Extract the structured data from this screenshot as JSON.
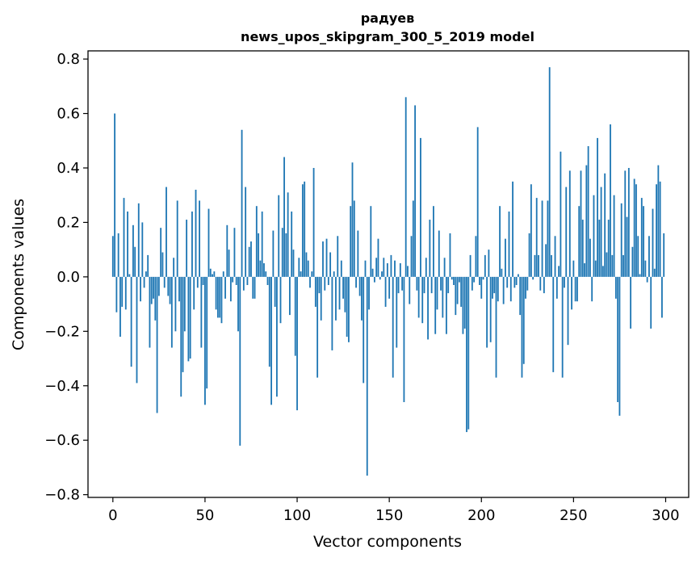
{
  "chart_data": {
    "type": "bar",
    "title": "радуев",
    "subtitle": "news_upos_skipgram_300_5_2019 model",
    "xlabel": "Vector components",
    "ylabel": "Components values",
    "xlim": [
      -13.5,
      312.5
    ],
    "ylim": [
      -0.81,
      0.83
    ],
    "xticks": [
      0,
      50,
      100,
      150,
      200,
      250,
      300
    ],
    "xtick_labels": [
      "0",
      "50",
      "100",
      "150",
      "200",
      "250",
      "300"
    ],
    "yticks": [
      0.8,
      0.6,
      0.4,
      0.2,
      0.0,
      -0.2,
      -0.4,
      -0.6,
      -0.8
    ],
    "ytick_labels": [
      "0.8",
      "0.6",
      "0.4",
      "0.2",
      "0.0",
      "−0.2",
      "−0.4",
      "−0.6",
      "−0.8"
    ],
    "grid": false,
    "bar_color": "#1f77b4",
    "values": [
      0.15,
      0.6,
      -0.13,
      0.16,
      -0.22,
      -0.11,
      0.29,
      -0.12,
      0.24,
      0.01,
      -0.33,
      0.19,
      0.11,
      -0.39,
      0.27,
      -0.09,
      0.2,
      -0.04,
      0.02,
      0.08,
      -0.26,
      -0.1,
      -0.08,
      -0.16,
      -0.5,
      -0.07,
      0.18,
      0.09,
      -0.04,
      0.33,
      -0.07,
      -0.1,
      -0.26,
      0.07,
      -0.2,
      0.28,
      -0.09,
      -0.44,
      -0.35,
      -0.2,
      0.21,
      -0.31,
      -0.3,
      0.24,
      -0.12,
      0.32,
      -0.04,
      0.28,
      -0.26,
      -0.03,
      -0.47,
      -0.41,
      0.25,
      0.03,
      0.01,
      0.02,
      -0.12,
      -0.15,
      -0.15,
      -0.17,
      0.02,
      -0.08,
      0.19,
      0.1,
      -0.09,
      -0.02,
      0.18,
      -0.03,
      -0.2,
      -0.62,
      0.54,
      -0.05,
      0.33,
      -0.03,
      0.11,
      0.13,
      -0.08,
      -0.08,
      0.26,
      0.16,
      0.06,
      0.24,
      0.05,
      0.02,
      -0.03,
      -0.33,
      -0.47,
      0.17,
      -0.11,
      -0.44,
      0.3,
      -0.17,
      0.18,
      0.44,
      0.16,
      0.31,
      -0.14,
      0.24,
      0.1,
      -0.29,
      -0.49,
      0.07,
      0.02,
      0.34,
      0.35,
      0.09,
      0.06,
      -0.04,
      0.02,
      0.4,
      -0.11,
      -0.37,
      -0.06,
      -0.16,
      0.13,
      -0.05,
      0.14,
      -0.03,
      0.09,
      -0.27,
      0.02,
      -0.16,
      0.15,
      -0.12,
      0.06,
      -0.08,
      -0.13,
      -0.22,
      -0.24,
      0.26,
      0.42,
      0.28,
      -0.04,
      0.17,
      -0.07,
      -0.16,
      -0.39,
      0.06,
      -0.73,
      -0.12,
      0.26,
      0.03,
      -0.02,
      0.07,
      0.14,
      -0.01,
      0.02,
      0.07,
      -0.11,
      0.05,
      -0.08,
      0.08,
      -0.37,
      0.06,
      -0.26,
      -0.06,
      0.05,
      -0.05,
      -0.46,
      0.66,
      0.04,
      -0.1,
      0.15,
      0.28,
      0.63,
      -0.05,
      -0.15,
      0.51,
      -0.17,
      -0.06,
      0.07,
      -0.23,
      0.21,
      -0.06,
      0.26,
      -0.21,
      -0.12,
      0.17,
      -0.05,
      -0.15,
      0.07,
      -0.21,
      -0.06,
      0.16,
      -0.01,
      -0.03,
      -0.14,
      -0.1,
      -0.02,
      -0.11,
      -0.21,
      -0.19,
      -0.57,
      -0.56,
      0.08,
      -0.05,
      -0.02,
      0.15,
      0.55,
      -0.03,
      -0.08,
      -0.01,
      0.08,
      -0.26,
      0.1,
      -0.24,
      -0.08,
      -0.06,
      -0.37,
      -0.09,
      0.26,
      0.03,
      -0.1,
      0.14,
      -0.04,
      0.24,
      -0.09,
      0.35,
      -0.04,
      -0.03,
      0.01,
      -0.14,
      -0.37,
      -0.32,
      -0.08,
      -0.05,
      0.16,
      0.34,
      -0.01,
      0.08,
      0.29,
      0.08,
      -0.05,
      0.28,
      -0.06,
      0.12,
      0.28,
      0.77,
      0.08,
      -0.35,
      0.15,
      -0.08,
      0.04,
      0.46,
      -0.37,
      -0.04,
      0.33,
      -0.25,
      0.39,
      -0.12,
      0.06,
      -0.09,
      -0.09,
      0.26,
      0.39,
      0.21,
      0.05,
      0.41,
      0.48,
      0.14,
      -0.09,
      0.3,
      0.06,
      0.51,
      0.21,
      0.33,
      0.04,
      0.38,
      0.09,
      0.21,
      0.56,
      0.08,
      0.3,
      -0.08,
      -0.46,
      -0.51,
      0.27,
      0.08,
      0.39,
      0.22,
      0.4,
      -0.19,
      0.11,
      0.36,
      0.34,
      0.15,
      0.01,
      0.29,
      0.26,
      0.06,
      -0.02,
      0.15,
      -0.19,
      0.25,
      0.03,
      0.34,
      0.41,
      0.35,
      -0.15,
      0.16
    ]
  }
}
